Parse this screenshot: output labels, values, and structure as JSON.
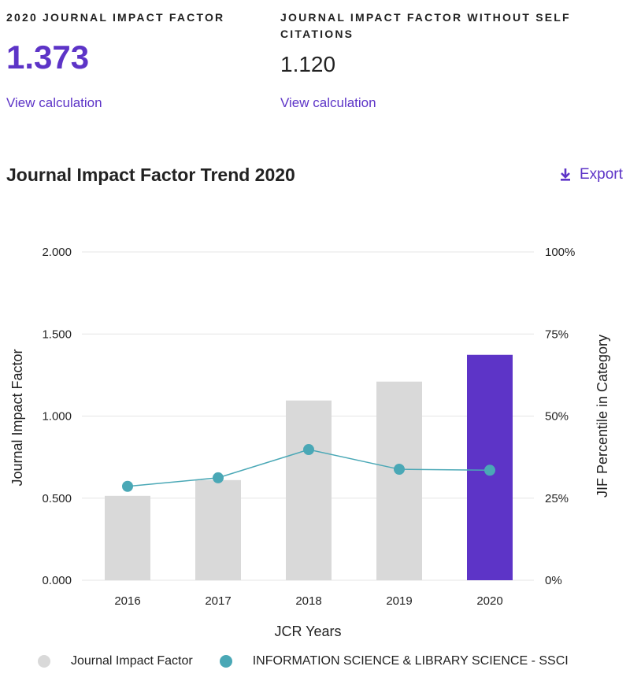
{
  "metrics": {
    "jif": {
      "label": "2020 JOURNAL IMPACT FACTOR",
      "value": "1.373",
      "link": "View calculation"
    },
    "jif_no_self": {
      "label": "JOURNAL IMPACT FACTOR WITHOUT SELF CITATIONS",
      "value": "1.120",
      "link": "View calculation"
    }
  },
  "trend": {
    "title": "Journal Impact Factor Trend 2020",
    "export_label": "Export"
  },
  "colors": {
    "accent": "#5d34c7",
    "bar_gray": "#d9d9d9",
    "line_teal": "#4aa8b6"
  },
  "chart_data": {
    "type": "bar",
    "categories": [
      "2016",
      "2017",
      "2018",
      "2019",
      "2020"
    ],
    "series": [
      {
        "name": "Journal Impact Factor",
        "axis": "left",
        "type": "bar",
        "values": [
          0.514,
          0.61,
          1.095,
          1.21,
          1.373
        ]
      },
      {
        "name": "INFORMATION SCIENCE & LIBRARY SCIENCE - SSCI",
        "axis": "right",
        "type": "line",
        "values": [
          28.6,
          31.2,
          39.8,
          33.8,
          33.5
        ]
      }
    ],
    "highlight_category": "2020",
    "xlabel": "JCR Years",
    "ylabel": "Journal Impact Factor",
    "ylabel_right": "JIF Percentile in Category",
    "ylim": [
      0,
      2
    ],
    "ylim_right": [
      0,
      100
    ],
    "yticks": [
      "0.000",
      "0.500",
      "1.000",
      "1.500",
      "2.000"
    ],
    "yticks_right": [
      "0%",
      "25%",
      "50%",
      "75%",
      "100%"
    ],
    "grid": true,
    "legend_position": "bottom"
  }
}
